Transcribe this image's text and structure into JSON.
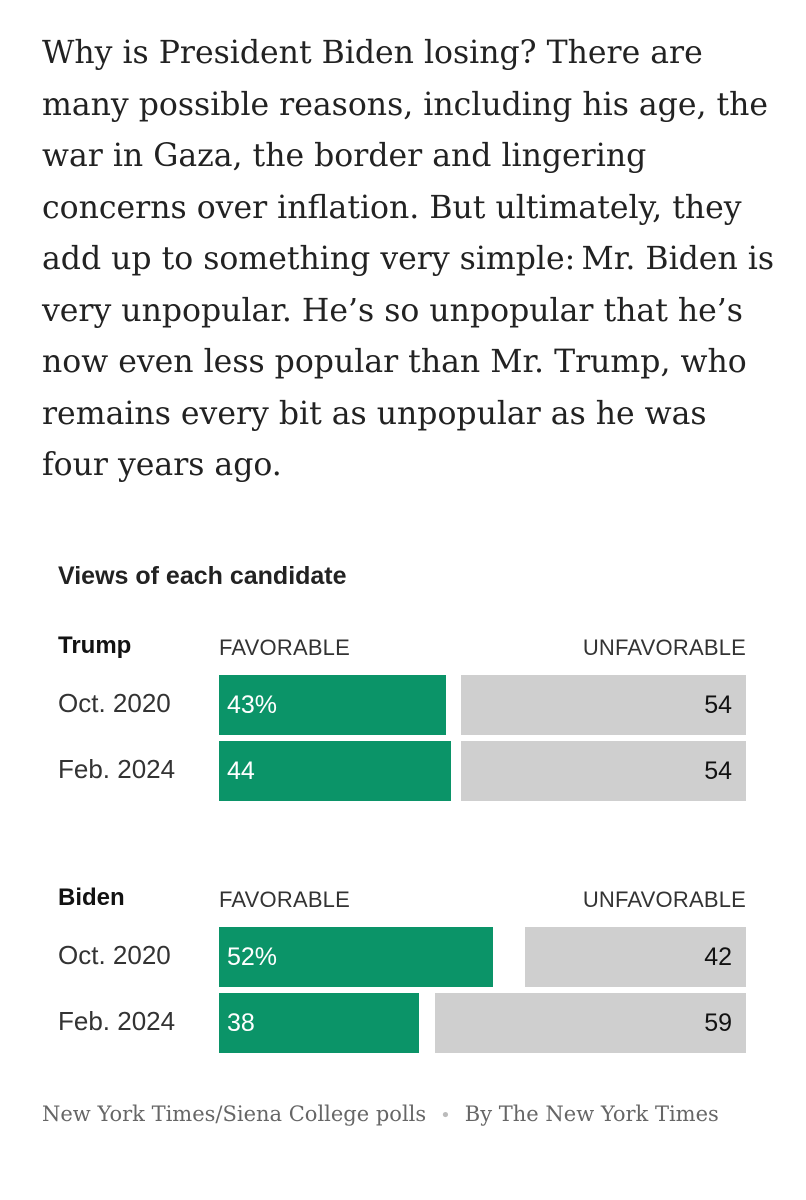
{
  "article": {
    "paragraph": "Why is President Biden losing? There are many possible reasons, including his age, the war in Gaza, the border and lingering concerns over inflation. But ultimately, they add up to something very simple: Mr. Biden is very unpopular. He’s so unpopular that he’s now even less popular than Mr. Trump, who remains every bit as unpopular as he was four years ago."
  },
  "chart_data": {
    "type": "bar",
    "title": "Views of each candidate",
    "column_headers": {
      "favorable": "FAVORABLE",
      "unfavorable": "UNFAVORABLE"
    },
    "scale_total": 100,
    "groups": [
      {
        "name": "Trump",
        "rows": [
          {
            "label": "Oct. 2020",
            "favorable": 43,
            "unfavorable": 54,
            "favorable_text": "43%",
            "unfavorable_text": "54"
          },
          {
            "label": "Feb. 2024",
            "favorable": 44,
            "unfavorable": 54,
            "favorable_text": "44",
            "unfavorable_text": "54"
          }
        ]
      },
      {
        "name": "Biden",
        "rows": [
          {
            "label": "Oct. 2020",
            "favorable": 52,
            "unfavorable": 42,
            "favorable_text": "52%",
            "unfavorable_text": "42"
          },
          {
            "label": "Feb. 2024",
            "favorable": 38,
            "unfavorable": 59,
            "favorable_text": "38",
            "unfavorable_text": "59"
          }
        ]
      }
    ],
    "colors": {
      "favorable": "#0b9468",
      "unfavorable": "#cfcfcf"
    }
  },
  "source": {
    "credit": "New York Times/Siena College polls",
    "separator": "•",
    "byline": "By The New York Times"
  }
}
